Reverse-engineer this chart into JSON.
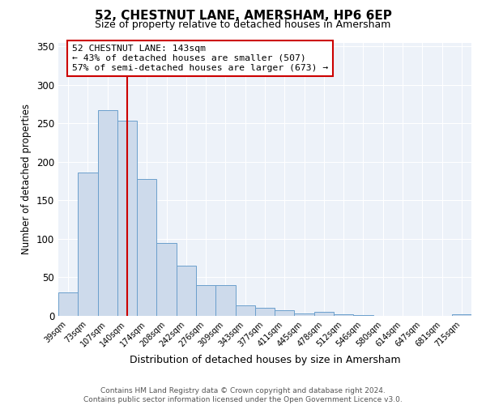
{
  "title": "52, CHESTNUT LANE, AMERSHAM, HP6 6EP",
  "subtitle": "Size of property relative to detached houses in Amersham",
  "xlabel": "Distribution of detached houses by size in Amersham",
  "ylabel": "Number of detached properties",
  "bar_labels": [
    "39sqm",
    "73sqm",
    "107sqm",
    "140sqm",
    "174sqm",
    "208sqm",
    "242sqm",
    "276sqm",
    "309sqm",
    "343sqm",
    "377sqm",
    "411sqm",
    "445sqm",
    "478sqm",
    "512sqm",
    "546sqm",
    "580sqm",
    "614sqm",
    "647sqm",
    "681sqm",
    "715sqm"
  ],
  "bar_values": [
    30,
    186,
    267,
    253,
    178,
    95,
    65,
    40,
    40,
    14,
    10,
    7,
    3,
    5,
    2,
    1,
    0,
    0,
    0,
    0,
    2
  ],
  "bar_color": "#cddaeb",
  "bar_edge_color": "#6b9fcc",
  "vline_x_idx": 3,
  "vline_color": "#cc0000",
  "ylim": [
    0,
    355
  ],
  "yticks": [
    0,
    50,
    100,
    150,
    200,
    250,
    300,
    350
  ],
  "annotation_text": "52 CHESTNUT LANE: 143sqm\n← 43% of detached houses are smaller (507)\n57% of semi-detached houses are larger (673) →",
  "annotation_box_edge_color": "#cc0000",
  "footer_line1": "Contains HM Land Registry data © Crown copyright and database right 2024.",
  "footer_line2": "Contains public sector information licensed under the Open Government Licence v3.0.",
  "background_color": "#edf2f9",
  "grid_color": "#ffffff",
  "title_fontsize": 11,
  "subtitle_fontsize": 9,
  "ylabel_fontsize": 8.5,
  "xlabel_fontsize": 9
}
